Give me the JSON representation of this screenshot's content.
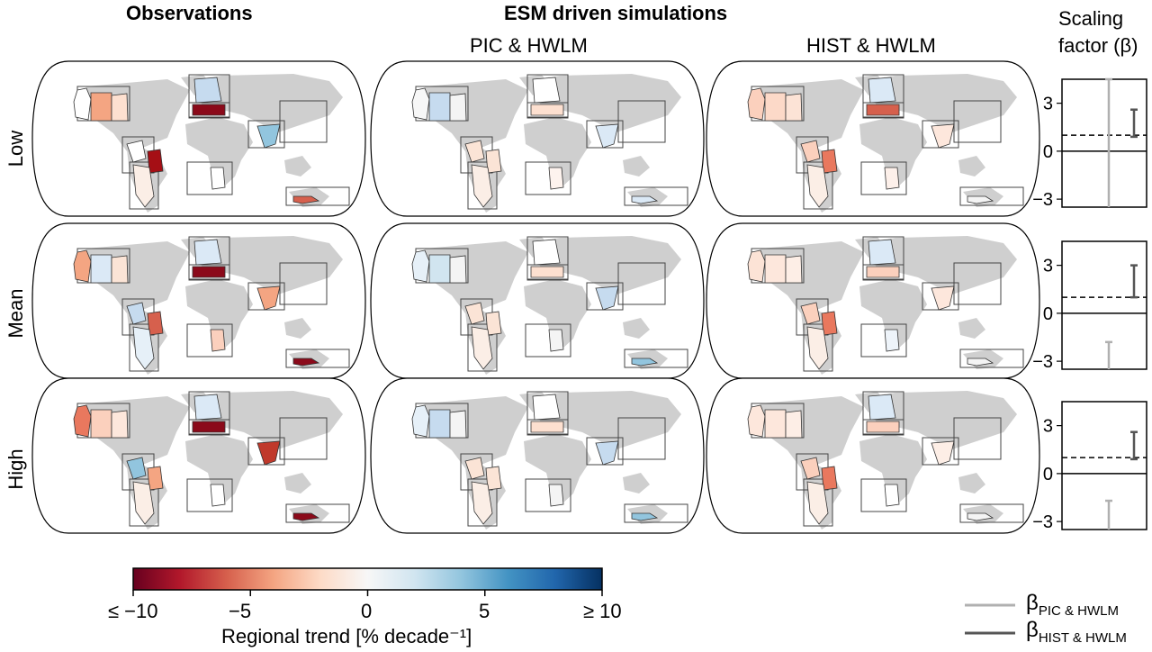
{
  "headers": {
    "observations": "Observations",
    "esm": "ESM driven simulations",
    "pic": "PIC & HWLM",
    "hist": "HIST & HWLM",
    "scaling_line1": "Scaling",
    "scaling_line2": "factor (β)"
  },
  "rows": [
    "Low",
    "Mean",
    "High"
  ],
  "colorbar": {
    "label": "Regional trend [% decade⁻¹]",
    "ticks": [
      "≤ −10",
      "−5",
      "0",
      "5",
      "≥ 10"
    ],
    "colors": [
      "#67001f",
      "#b2182b",
      "#d6604d",
      "#f4a582",
      "#fddbc7",
      "#f7f7f7",
      "#d1e5f0",
      "#92c5de",
      "#4393c3",
      "#2166ac",
      "#053061"
    ]
  },
  "legend": {
    "pic_symbol": "β",
    "pic_sub": "PIC & HWLM",
    "pic_color": "#b0b0b0",
    "hist_symbol": "β",
    "hist_sub": "HIST & HWLM",
    "hist_color": "#555555"
  },
  "chart_data": {
    "type": "map-panels",
    "row_labels": [
      "Low",
      "Mean",
      "High"
    ],
    "column_labels": [
      "Observations",
      "PIC & HWLM",
      "HIST & HWLM"
    ],
    "region_colors": {
      "Low": {
        "Observations": {
          "wNA": "#ffffff",
          "cNA": "#f4a582",
          "eNA": "#fde0d0",
          "NEU": "#c6dbef",
          "MED": "#8b0a1a",
          "WAF": "#92c5de",
          "SAS": "#ffffff",
          "NSA": "#ffffff",
          "SSA": "#a50f15",
          "SAM": "#fbeee6",
          "SAF": "#ffffff",
          "AUS": "#d6604d"
        },
        "PIC & HWLM": {
          "wNA": "#f7f7f7",
          "cNA": "#c6dbef",
          "eNA": "#f4f4f4",
          "NEU": "#ffffff",
          "MED": "#fde0d0",
          "WAF": "#dbe9f6",
          "SAS": "#ffffff",
          "NSA": "#fbe4d6",
          "SSA": "#fbe4d6",
          "SAM": "#fbeee6",
          "SAF": "#fdf3ee",
          "AUS": "#dbe9f6"
        },
        "HIST & HWLM": {
          "wNA": "#fbd0bd",
          "cNA": "#fcd9c8",
          "eNA": "#fce3d6",
          "NEU": "#dbe9f6",
          "MED": "#d6604d",
          "WAF": "#fde7dc",
          "SAS": "#ffffff",
          "NSA": "#fbd0bd",
          "SSA": "#e9785e",
          "SAM": "#fbeee6",
          "SAF": "#fdf0ea",
          "AUS": "#f4f4f4"
        }
      },
      "Mean": {
        "Observations": {
          "wNA": "#f4a582",
          "cNA": "#dbe9f6",
          "eNA": "#fbe4d6",
          "NEU": "#dbe9f6",
          "MED": "#8b0a1a",
          "WAF": "#f4a582",
          "SAS": "#ffffff",
          "NSA": "#c6dbef",
          "SSA": "#d6604d",
          "SAM": "#e6f0f8",
          "SAF": "#fbd0bd",
          "AUS": "#8b0a1a"
        },
        "PIC & HWLM": {
          "wNA": "#e6f0f8",
          "cNA": "#d1e5f0",
          "eNA": "#f4f4f4",
          "NEU": "#ffffff",
          "MED": "#fde0d0",
          "WAF": "#c6dbef",
          "SAS": "#ffffff",
          "NSA": "#fbe4d6",
          "SSA": "#fbe4d6",
          "SAM": "#fbeee6",
          "SAF": "#f4f4f4",
          "AUS": "#92c5de"
        },
        "HIST & HWLM": {
          "wNA": "#fce3d6",
          "cNA": "#fde7dc",
          "eNA": "#fdeee6",
          "NEU": "#dbe9f6",
          "MED": "#fbd0bd",
          "WAF": "#fde7dc",
          "SAS": "#ffffff",
          "NSA": "#fbd0bd",
          "SSA": "#e9785e",
          "SAM": "#fbeee6",
          "SAF": "#eef4fa",
          "AUS": "#f4f4f4"
        }
      },
      "High": {
        "Observations": {
          "wNA": "#e9785e",
          "cNA": "#fbd0bd",
          "eNA": "#fde7dc",
          "NEU": "#dbe9f6",
          "MED": "#8b0a1a",
          "WAF": "#c0392b",
          "SAS": "#ffffff",
          "NSA": "#92c5de",
          "SSA": "#f4a582",
          "SAM": "#fbeee6",
          "SAF": "#ffffff",
          "AUS": "#8b0a1a"
        },
        "PIC & HWLM": {
          "wNA": "#e6f0f8",
          "cNA": "#c6dbef",
          "eNA": "#f4f4f4",
          "NEU": "#ffffff",
          "MED": "#fde0d0",
          "WAF": "#c6dbef",
          "SAS": "#ffffff",
          "NSA": "#fbe4d6",
          "SSA": "#fbe4d6",
          "SAM": "#fbeee6",
          "SAF": "#f4f4f4",
          "AUS": "#92c5de"
        },
        "HIST & HWLM": {
          "wNA": "#fde7dc",
          "cNA": "#fde7dc",
          "eNA": "#fdeee6",
          "NEU": "#dbe9f6",
          "MED": "#fbd0bd",
          "WAF": "#fdeee6",
          "SAS": "#ffffff",
          "NSA": "#fbd0bd",
          "SSA": "#e9785e",
          "SAM": "#fbeee6",
          "SAF": "#ffffff",
          "AUS": "#f4f4f4"
        }
      }
    },
    "scaling_factor": {
      "yticks": [
        3,
        0,
        -3
      ],
      "ylim": [
        -3.5,
        4.5
      ],
      "reference_line": 1,
      "Low": {
        "pic": [
          -3.5,
          4.5
        ],
        "hist": [
          0.9,
          2.6
        ]
      },
      "Mean": {
        "pic": [
          -3.5,
          -1.8
        ],
        "hist": [
          1.0,
          3.0
        ]
      },
      "High": {
        "pic": [
          -3.5,
          -1.7
        ],
        "hist": [
          0.9,
          2.6
        ]
      }
    }
  }
}
